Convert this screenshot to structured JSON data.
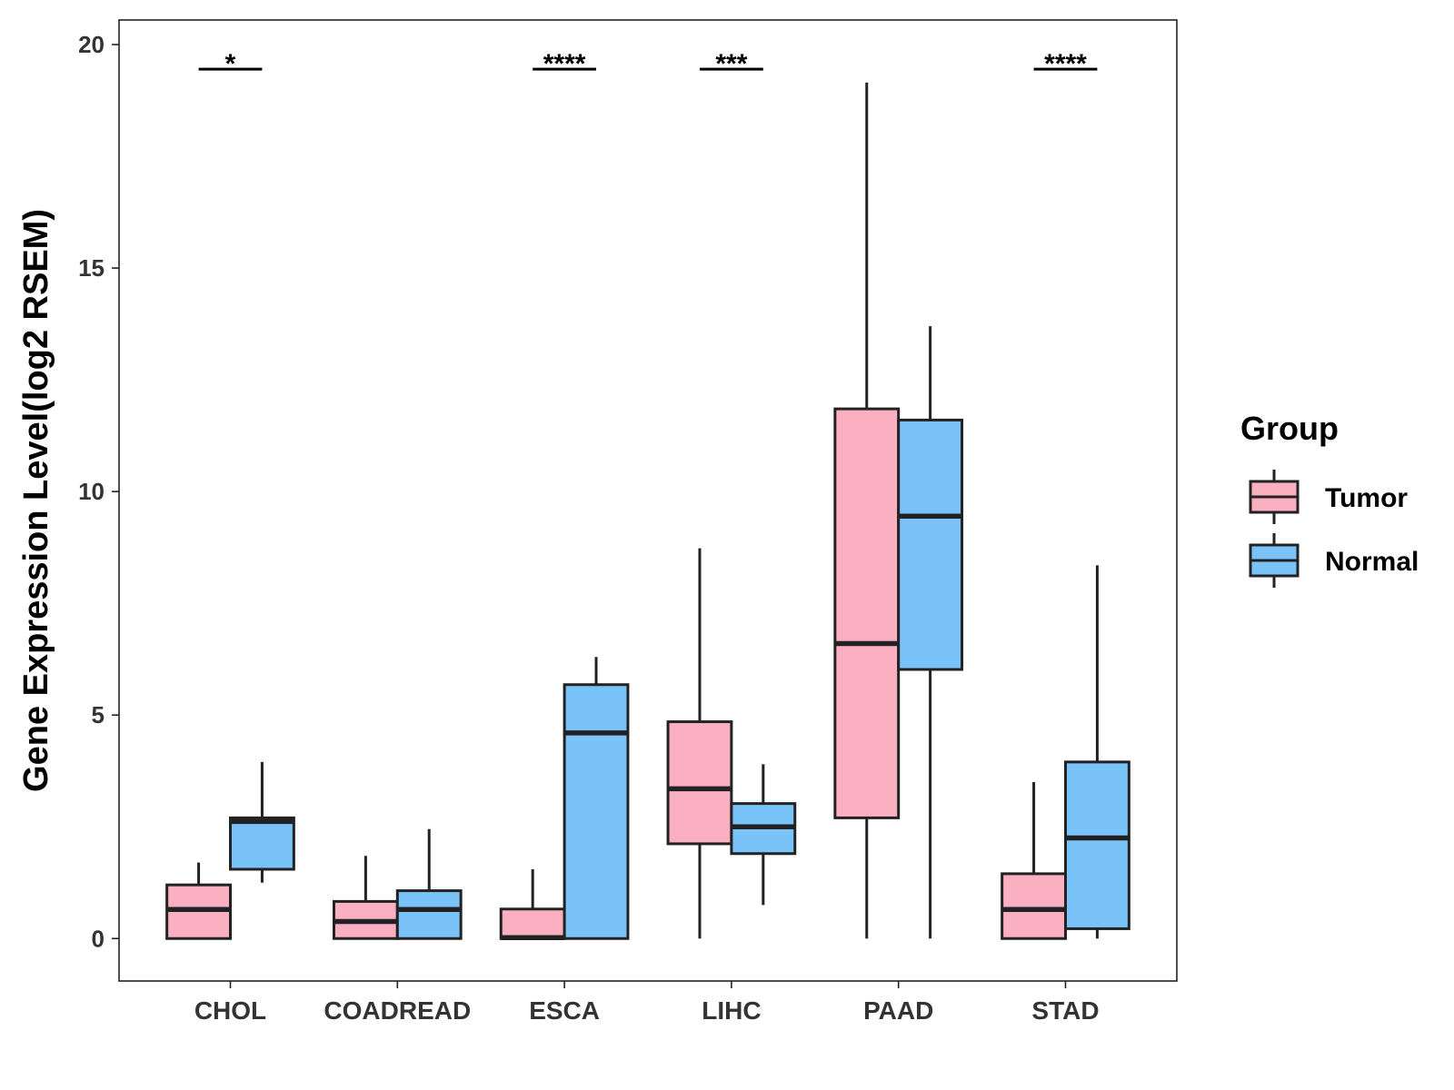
{
  "chart_data": {
    "type": "boxplot",
    "title": "",
    "xlabel": "",
    "ylabel": "Gene Expression Level(log2 RSEM)",
    "ylim": [
      -0.95,
      20.55
    ],
    "yticks": [
      0,
      5,
      10,
      15,
      20
    ],
    "categories": [
      "CHOL",
      "COADREAD",
      "ESCA",
      "LIHC",
      "PAAD",
      "STAD"
    ],
    "legend": {
      "title": "Group",
      "position": "right",
      "entries": [
        {
          "name": "Tumor",
          "color": "#FBB0C2"
        },
        {
          "name": "Normal",
          "color": "#7AC3F8"
        }
      ]
    },
    "series": [
      {
        "name": "Tumor",
        "color": "#FBB0C2",
        "boxes": [
          {
            "category": "CHOL",
            "whisker_low": 0.0,
            "q1": 0.0,
            "median": 0.65,
            "q3": 1.2,
            "whisker_high": 1.7
          },
          {
            "category": "COADREAD",
            "whisker_low": 0.0,
            "q1": 0.0,
            "median": 0.38,
            "q3": 0.83,
            "whisker_high": 1.85
          },
          {
            "category": "ESCA",
            "whisker_low": 0.0,
            "q1": 0.0,
            "median": 0.02,
            "q3": 0.66,
            "whisker_high": 1.55
          },
          {
            "category": "LIHC",
            "whisker_low": 0.0,
            "q1": 2.12,
            "median": 3.35,
            "q3": 4.85,
            "whisker_high": 8.73
          },
          {
            "category": "PAAD",
            "whisker_low": 0.0,
            "q1": 2.7,
            "median": 6.6,
            "q3": 11.85,
            "whisker_high": 19.15
          },
          {
            "category": "STAD",
            "whisker_low": 0.0,
            "q1": 0.0,
            "median": 0.65,
            "q3": 1.45,
            "whisker_high": 3.5
          }
        ]
      },
      {
        "name": "Normal",
        "color": "#7AC3F8",
        "boxes": [
          {
            "category": "CHOL",
            "whisker_low": 1.25,
            "q1": 1.55,
            "median": 2.62,
            "q3": 2.7,
            "whisker_high": 3.95
          },
          {
            "category": "COADREAD",
            "whisker_low": 0.0,
            "q1": 0.0,
            "median": 0.65,
            "q3": 1.07,
            "whisker_high": 2.45
          },
          {
            "category": "ESCA",
            "whisker_low": 0.0,
            "q1": 0.0,
            "median": 4.6,
            "q3": 5.68,
            "whisker_high": 6.3
          },
          {
            "category": "LIHC",
            "whisker_low": 0.75,
            "q1": 1.9,
            "median": 2.5,
            "q3": 3.02,
            "whisker_high": 3.9
          },
          {
            "category": "PAAD",
            "whisker_low": 0.0,
            "q1": 6.02,
            "median": 9.45,
            "q3": 11.6,
            "whisker_high": 13.7
          },
          {
            "category": "STAD",
            "whisker_low": 0.0,
            "q1": 0.22,
            "median": 2.25,
            "q3": 3.95,
            "whisker_high": 8.35
          }
        ]
      }
    ],
    "significance": [
      {
        "category": "CHOL",
        "label": "*",
        "y": 19.45
      },
      {
        "category": "ESCA",
        "label": "****",
        "y": 19.45
      },
      {
        "category": "LIHC",
        "label": "***",
        "y": 19.45
      },
      {
        "category": "STAD",
        "label": "****",
        "y": 19.45
      }
    ]
  }
}
